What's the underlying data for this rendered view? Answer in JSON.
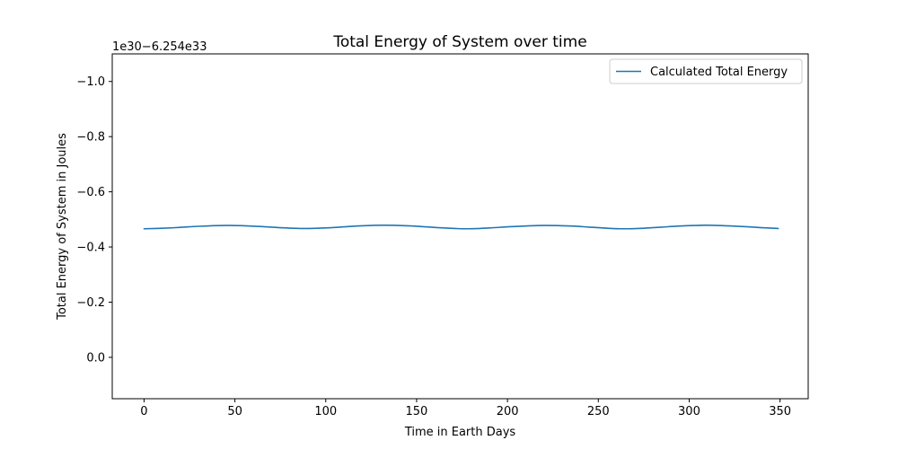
{
  "chart_data": {
    "type": "line",
    "title": "Total Energy of System over time",
    "xlabel": "Time in Earth Days",
    "ylabel": "Total Energy of System in Joules",
    "offset_label": "1e30−6.254e33",
    "xlim": [
      -17.5,
      365.5
    ],
    "ylim": [
      0.15,
      -1.1
    ],
    "y_inverted": true,
    "xticks": [
      0,
      50,
      100,
      150,
      200,
      250,
      300,
      350
    ],
    "xtick_labels": [
      "0",
      "50",
      "100",
      "150",
      "200",
      "250",
      "300",
      "350"
    ],
    "yticks": [
      0.0,
      -0.2,
      -0.4,
      -0.6,
      -0.8,
      -1.0
    ],
    "ytick_labels": [
      "0.0",
      "−0.2",
      "−0.4",
      "−0.6",
      "−0.8",
      "−1.0"
    ],
    "grid": false,
    "legend": {
      "position": "top-right",
      "entries": [
        "Calculated Total Energy"
      ]
    },
    "series": [
      {
        "name": "Calculated Total Energy",
        "color": "#1f77b4",
        "x": [
          0,
          10,
          20,
          30,
          45,
          55,
          65,
          75,
          88,
          100,
          110,
          120,
          132,
          145,
          155,
          165,
          177,
          190,
          200,
          210,
          220,
          235,
          245,
          255,
          264,
          275,
          285,
          295,
          309,
          320,
          330,
          340,
          349
        ],
        "y": [
          -0.466,
          -0.468,
          -0.471,
          -0.475,
          -0.478,
          -0.477,
          -0.474,
          -0.47,
          -0.467,
          -0.469,
          -0.473,
          -0.477,
          -0.479,
          -0.477,
          -0.473,
          -0.469,
          -0.466,
          -0.469,
          -0.473,
          -0.476,
          -0.478,
          -0.476,
          -0.472,
          -0.468,
          -0.466,
          -0.468,
          -0.472,
          -0.476,
          -0.479,
          -0.477,
          -0.474,
          -0.47,
          -0.467
        ]
      }
    ]
  }
}
